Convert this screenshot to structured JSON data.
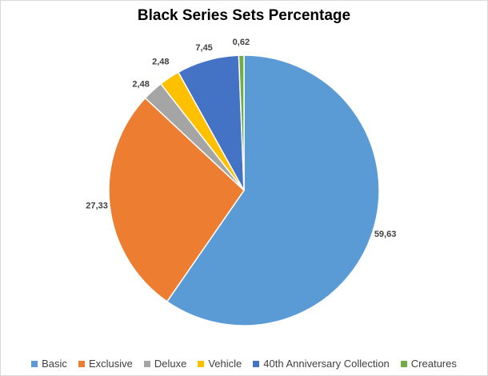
{
  "chart_data": {
    "type": "pie",
    "title": "Black Series Sets Percentage",
    "slices": [
      {
        "label": "Basic",
        "value": 59.63,
        "display": "59,63",
        "color": "#5B9BD5"
      },
      {
        "label": "Exclusive",
        "value": 27.33,
        "display": "27,33",
        "color": "#ED7D31"
      },
      {
        "label": "Deluxe",
        "value": 2.48,
        "display": "2,48",
        "color": "#A5A5A5"
      },
      {
        "label": "Vehicle",
        "value": 2.48,
        "display": "2,48",
        "color": "#FFC000"
      },
      {
        "label": "40th Anniversary Collection",
        "value": 7.45,
        "display": "7,45",
        "color": "#4472C4"
      },
      {
        "label": "Creatures",
        "value": 0.62,
        "display": "0,62",
        "color": "#70AD47"
      }
    ],
    "legend_position": "bottom"
  }
}
